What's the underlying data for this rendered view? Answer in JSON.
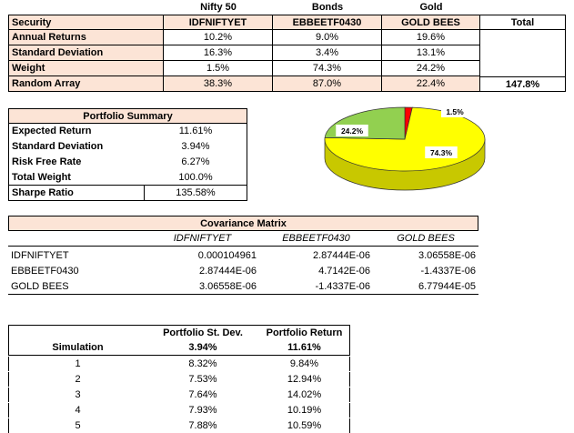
{
  "asset_table": {
    "categories": [
      "Nifty 50",
      "Bonds",
      "Gold"
    ],
    "security_label": "Security",
    "securities": [
      "IDFNIFTYET",
      "EBBEETF0430",
      "GOLD BEES"
    ],
    "total_label": "Total",
    "rows": [
      {
        "label": "Annual Returns",
        "values": [
          "10.2%",
          "9.0%",
          "19.6%"
        ],
        "total": ""
      },
      {
        "label": "Standard Deviation",
        "values": [
          "16.3%",
          "3.4%",
          "13.1%"
        ],
        "total": ""
      },
      {
        "label": "Weight",
        "values": [
          "1.5%",
          "74.3%",
          "24.2%"
        ],
        "total": ""
      },
      {
        "label": "Random Array",
        "values": [
          "38.3%",
          "87.0%",
          "22.4%"
        ],
        "total": "147.8%"
      }
    ]
  },
  "portfolio_summary": {
    "title": "Portfolio Summary",
    "rows": [
      {
        "label": "Expected Return",
        "value": "11.61%"
      },
      {
        "label": "Standard Deviation",
        "value": "3.94%"
      },
      {
        "label": "Risk Free Rate",
        "value": "6.27%"
      },
      {
        "label": "Total Weight",
        "value": "100.0%"
      },
      {
        "label": "Sharpe Ratio",
        "value": "135.58%"
      }
    ]
  },
  "chart_data": {
    "type": "pie",
    "labels": [
      "1.5%",
      "74.3%",
      "24.2%"
    ],
    "values": [
      1.5,
      74.3,
      24.2
    ],
    "colors": [
      "#ff0000",
      "#ffff00",
      "#92d050"
    ]
  },
  "covariance": {
    "title": "Covariance Matrix",
    "headers": [
      "IDFNIFTYET",
      "EBBEETF0430",
      "GOLD BEES"
    ],
    "rows": [
      {
        "label": "IDFNIFTYET",
        "values": [
          "0.000104961",
          "2.87444E-06",
          "3.06558E-06"
        ]
      },
      {
        "label": "EBBEETF0430",
        "values": [
          "2.87444E-06",
          "4.7142E-06",
          "-1.4337E-06"
        ]
      },
      {
        "label": "GOLD BEES",
        "values": [
          "3.06558E-06",
          "-1.4337E-06",
          "6.77944E-05"
        ]
      }
    ]
  },
  "simulation": {
    "headers": [
      "Portfolio St. Dev.",
      "Portfolio Return"
    ],
    "label": "Simulation",
    "current": {
      "stdev": "3.94%",
      "ret": "11.61%"
    },
    "rows": [
      {
        "n": "1",
        "stdev": "8.32%",
        "ret": "9.84%"
      },
      {
        "n": "2",
        "stdev": "7.53%",
        "ret": "12.94%"
      },
      {
        "n": "3",
        "stdev": "7.64%",
        "ret": "14.02%"
      },
      {
        "n": "4",
        "stdev": "7.93%",
        "ret": "10.19%"
      },
      {
        "n": "5",
        "stdev": "7.88%",
        "ret": "10.59%"
      }
    ]
  }
}
